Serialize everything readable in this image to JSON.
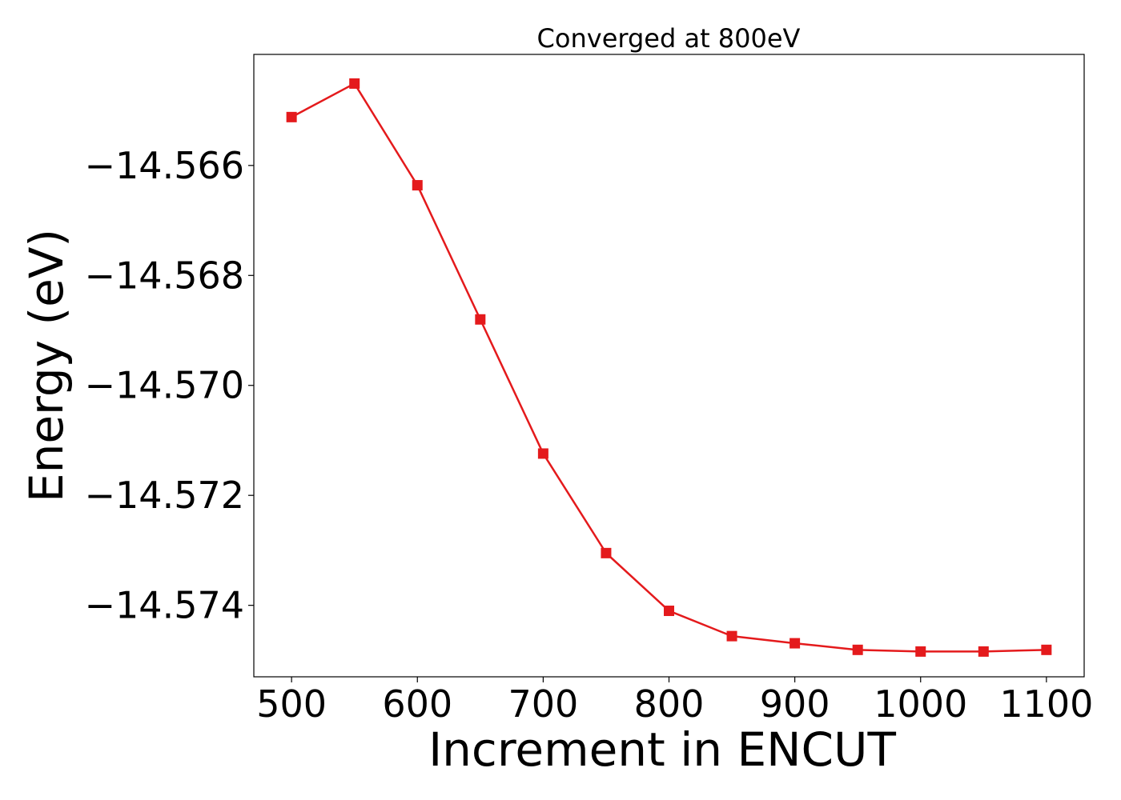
{
  "chart_data": {
    "type": "line",
    "title": "Converged at 800eV",
    "xlabel": "Increment in ENCUT",
    "ylabel": "Energy (eV)",
    "x": [
      500,
      550,
      600,
      650,
      700,
      750,
      800,
      850,
      900,
      950,
      1000,
      1050,
      1100
    ],
    "series": [
      {
        "values": [
          -14.56512,
          -14.56451,
          -14.56636,
          -14.5688,
          -14.57124,
          -14.57305,
          -14.5741,
          -14.57456,
          -14.57469,
          -14.57481,
          -14.57484,
          -14.57484,
          -14.57481
        ],
        "color": "#e41a1c",
        "marker": "square"
      }
    ],
    "xlim": [
      470,
      1130
    ],
    "ylim": [
      -14.5753,
      -14.56398
    ],
    "xticks": [
      500,
      600,
      700,
      800,
      900,
      1000,
      1100
    ],
    "yticks": [
      -14.566,
      -14.568,
      -14.57,
      -14.572,
      -14.574
    ],
    "ytick_labels": [
      "−14.566",
      "−14.568",
      "−14.570",
      "−14.572",
      "−14.574"
    ],
    "grid": false,
    "legend": "none"
  }
}
